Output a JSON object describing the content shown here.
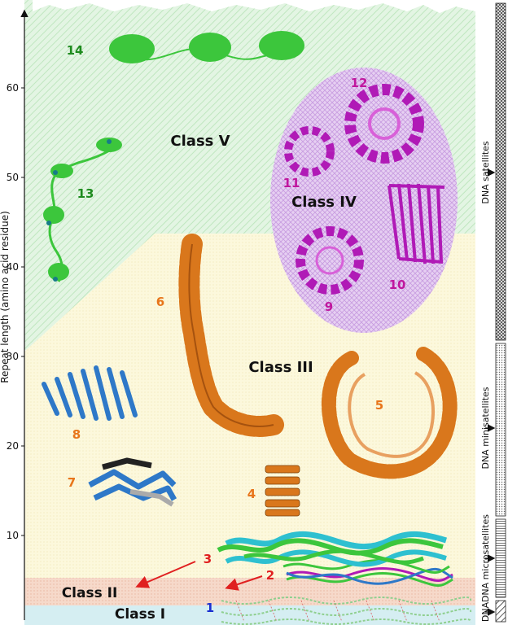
{
  "axis": {
    "ylabel": "Repeat length (amino acid residue)",
    "ticks": [
      "10",
      "20",
      "30",
      "40",
      "50",
      "60"
    ]
  },
  "classes": {
    "c1": "Class I",
    "c2": "Class II",
    "c3": "Class III",
    "c4": "Class IV",
    "c5": "Class V"
  },
  "structure_numbers": {
    "n1": "1",
    "n2": "2",
    "n3": "3",
    "n4": "4",
    "n5": "5",
    "n6": "6",
    "n7": "7",
    "n8": "8",
    "n9": "9",
    "n10": "10",
    "n11": "11",
    "n12": "12",
    "n13": "13",
    "n14": "14"
  },
  "dna_labels": {
    "satellites": "DNA satellites",
    "minisatellites": "DNA minisatellites",
    "microsatellites": "DNA microsatellites",
    "nano": "DNA"
  },
  "colors": {
    "class1_band": "#d5eef2",
    "class2_band": "#f3d2c2",
    "class3_region": "#fbf7d6",
    "class5_region": "#dcf2dc",
    "class4_ellipse": "#e1c9f0",
    "green_struct": "#3cc63c",
    "magenta_struct": "#b01ab6",
    "orange_struct": "#d9771c",
    "blue_struct": "#2e78c8",
    "label_green": "#1e8b1e",
    "label_magenta": "#c0179e",
    "label_orange": "#e8751a",
    "label_blue": "#1a2fd0",
    "arrow_red": "#e02020"
  }
}
